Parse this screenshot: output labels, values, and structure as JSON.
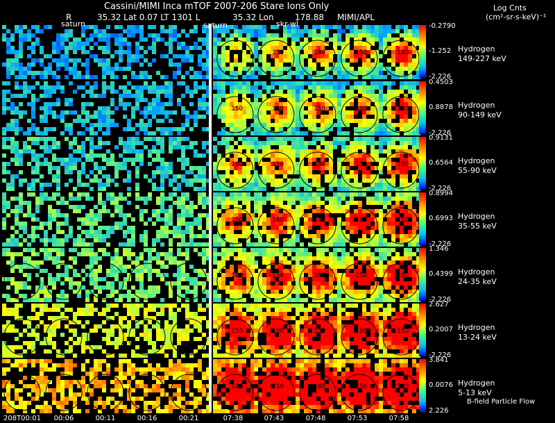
{
  "title": "Cassini/MIMI Inca mTOF  2007-206   Stare    Ions Only",
  "info_line": {
    "r": "R",
    "r_val": "35.32 Lat 0.07 LT 1301 L",
    "lon_val": "35.32 Lon",
    "lon_num": "178.88",
    "org": "MIMI/APL"
  },
  "units": {
    "line1": "Log Cnts",
    "line2": "(cm²-sr-s-keV)⁻¹"
  },
  "saturn_labels": [
    "saturn",
    "saturn",
    "skr-wl"
  ],
  "contour_labels": [
    "150",
    "180",
    "120",
    "60"
  ],
  "rows": [
    {
      "species": "Hydrogen",
      "energy": "149-227 keV",
      "max": "-0.2790",
      "mid": "-1.252",
      "min": "-2.226"
    },
    {
      "species": "Hydrogen",
      "energy": "90-149 keV",
      "max": "0.4503",
      "mid": "0.8878",
      "min": "-2.226"
    },
    {
      "species": "Hydrogen",
      "energy": "55-90 keV",
      "max": "0.9131",
      "mid": "0.6564",
      "min": "-2.226"
    },
    {
      "species": "Hydrogen",
      "energy": "35-55 keV",
      "max": "0.8994",
      "mid": "0.6993",
      "min": "-2.226"
    },
    {
      "species": "Hydrogen",
      "energy": "24-35 keV",
      "max": "1.346",
      "mid": "0.4399",
      "min": "-2.226"
    },
    {
      "species": "Hydrogen",
      "energy": "13-24 keV",
      "max": "2.627",
      "mid": "0.2007",
      "min": "-2.226"
    },
    {
      "species": "Hydrogen",
      "energy": "5-13 keV",
      "max": "3.841",
      "mid": "0.0076",
      "min": "2.226"
    }
  ],
  "bfield_label": "B-field Particle Flow",
  "time_ticks": [
    "208T00:01",
    "00:06",
    "00:11",
    "00:16",
    "00:21",
    "07:38",
    "07:43",
    "07:48",
    "07:53",
    "07:58"
  ]
}
